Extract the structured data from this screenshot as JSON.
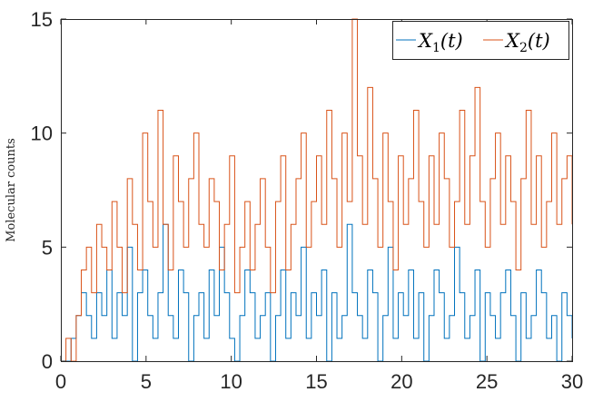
{
  "chart_data": {
    "type": "line",
    "title": "",
    "xlabel": "",
    "ylabel": "Molecular counts",
    "xlim": [
      0,
      30
    ],
    "ylim": [
      0,
      15
    ],
    "xticks": [
      "0",
      "5",
      "10",
      "15",
      "20",
      "25",
      "30"
    ],
    "yticks": [
      "0",
      "5",
      "10",
      "15"
    ],
    "grid": false,
    "legend_position": "top-right",
    "series": [
      {
        "name": "X1(t)",
        "legend_main": "X",
        "legend_sub": "1",
        "legend_arg": "(t)",
        "color": "#0072BD",
        "x": [
          0,
          0.3,
          0.6,
          0.9,
          1.2,
          1.5,
          1.8,
          2.1,
          2.4,
          2.7,
          3,
          3.3,
          3.6,
          3.9,
          4.2,
          4.5,
          4.8,
          5.1,
          5.4,
          5.7,
          6,
          6.3,
          6.6,
          6.9,
          7.2,
          7.5,
          7.8,
          8.1,
          8.4,
          8.7,
          9,
          9.3,
          9.6,
          9.9,
          10.2,
          10.5,
          10.8,
          11.1,
          11.4,
          11.7,
          12,
          12.3,
          12.6,
          12.9,
          13.2,
          13.5,
          13.8,
          14.1,
          14.4,
          14.7,
          15,
          15.3,
          15.6,
          15.9,
          16.2,
          16.5,
          16.8,
          17.1,
          17.4,
          17.7,
          18,
          18.3,
          18.6,
          18.9,
          19.2,
          19.5,
          19.8,
          20.1,
          20.4,
          20.7,
          21,
          21.3,
          21.6,
          21.9,
          22.2,
          22.5,
          22.8,
          23.1,
          23.4,
          23.7,
          24,
          24.3,
          24.6,
          24.9,
          25.2,
          25.5,
          25.8,
          26.1,
          26.4,
          26.7,
          27,
          27.3,
          27.6,
          27.9,
          28.2,
          28.5,
          28.8,
          29.1,
          29.4,
          29.7,
          30
        ],
        "y": [
          0,
          0,
          1,
          2,
          3,
          2,
          1,
          3,
          2,
          4,
          1,
          3,
          2,
          5,
          0,
          3,
          4,
          2,
          1,
          3,
          6,
          2,
          1,
          4,
          3,
          0,
          2,
          3,
          1,
          4,
          2,
          5,
          3,
          1,
          0,
          2,
          4,
          3,
          1,
          2,
          3,
          0,
          2,
          4,
          1,
          3,
          2,
          5,
          1,
          3,
          2,
          4,
          0,
          3,
          1,
          2,
          6,
          3,
          2,
          1,
          4,
          3,
          0,
          2,
          5,
          1,
          3,
          2,
          4,
          1,
          3,
          0,
          2,
          4,
          3,
          1,
          2,
          5,
          3,
          1,
          2,
          4,
          0,
          3,
          2,
          1,
          3,
          4,
          2,
          0,
          3,
          1,
          2,
          4,
          3,
          1,
          2,
          0,
          3,
          2,
          1
        ]
      },
      {
        "name": "X2(t)",
        "legend_main": "X",
        "legend_sub": "2",
        "legend_arg": "(t)",
        "color": "#D95319",
        "x": [
          0,
          0.3,
          0.6,
          0.9,
          1.2,
          1.5,
          1.8,
          2.1,
          2.4,
          2.7,
          3,
          3.3,
          3.6,
          3.9,
          4.2,
          4.5,
          4.8,
          5.1,
          5.4,
          5.7,
          6,
          6.3,
          6.6,
          6.9,
          7.2,
          7.5,
          7.8,
          8.1,
          8.4,
          8.7,
          9,
          9.3,
          9.6,
          9.9,
          10.2,
          10.5,
          10.8,
          11.1,
          11.4,
          11.7,
          12,
          12.3,
          12.6,
          12.9,
          13.2,
          13.5,
          13.8,
          14.1,
          14.4,
          14.7,
          15,
          15.3,
          15.6,
          15.9,
          16.2,
          16.5,
          16.8,
          17.1,
          17.4,
          17.7,
          18,
          18.3,
          18.6,
          18.9,
          19.2,
          19.5,
          19.8,
          20.1,
          20.4,
          20.7,
          21,
          21.3,
          21.6,
          21.9,
          22.2,
          22.5,
          22.8,
          23.1,
          23.4,
          23.7,
          24,
          24.3,
          24.6,
          24.9,
          25.2,
          25.5,
          25.8,
          26.1,
          26.4,
          26.7,
          27,
          27.3,
          27.6,
          27.9,
          28.2,
          28.5,
          28.8,
          29.1,
          29.4,
          29.7,
          30
        ],
        "y": [
          0,
          1,
          0,
          2,
          4,
          5,
          3,
          6,
          5,
          4,
          7,
          5,
          3,
          8,
          6,
          4,
          10,
          7,
          5,
          11,
          6,
          4,
          9,
          7,
          5,
          8,
          10,
          6,
          5,
          8,
          7,
          4,
          6,
          9,
          3,
          5,
          7,
          4,
          6,
          8,
          5,
          3,
          7,
          9,
          4,
          6,
          8,
          10,
          5,
          7,
          9,
          6,
          11,
          8,
          5,
          10,
          7,
          15,
          9,
          6,
          12,
          8,
          5,
          10,
          7,
          4,
          9,
          6,
          8,
          11,
          7,
          5,
          9,
          6,
          10,
          8,
          5,
          7,
          11,
          6,
          9,
          12,
          7,
          5,
          8,
          10,
          6,
          9,
          7,
          4,
          8,
          11,
          6,
          9,
          5,
          7,
          10,
          6,
          8,
          9,
          6
        ]
      }
    ]
  }
}
